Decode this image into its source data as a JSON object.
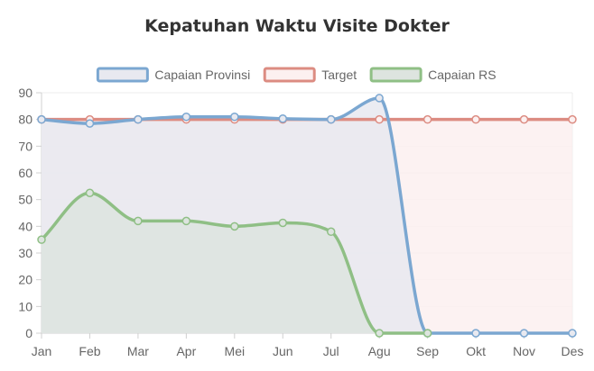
{
  "chart_data": {
    "type": "line",
    "title": "Kepatuhan Waktu Visite Dokter",
    "categories": [
      "Jan",
      "Feb",
      "Mar",
      "Apr",
      "Mei",
      "Jun",
      "Jul",
      "Agu",
      "Sep",
      "Okt",
      "Nov",
      "Des"
    ],
    "ylim": [
      0,
      90
    ],
    "yticks": [
      "0",
      "10",
      "20",
      "30",
      "40",
      "50",
      "60",
      "70",
      "80",
      "90"
    ],
    "grid": true,
    "legend_position": "top",
    "series": [
      {
        "name": "Capaian Provinsi",
        "color": "#7ba7d1",
        "fill": "#e8e9f0",
        "values": [
          80,
          78.5,
          80,
          81,
          81,
          80.3,
          80,
          88,
          0,
          0,
          0,
          0
        ]
      },
      {
        "name": "Target",
        "color": "#dc8c82",
        "fill": "#fcf0f0",
        "values": [
          80,
          80,
          80,
          80,
          80,
          80,
          80,
          80,
          80,
          80,
          80,
          80
        ]
      },
      {
        "name": "Capaian RS",
        "color": "#8fbf85",
        "fill": "#dde4df",
        "values": [
          35,
          52.5,
          42,
          42,
          40,
          41.3,
          38,
          0,
          0,
          null,
          null,
          null
        ]
      }
    ]
  }
}
